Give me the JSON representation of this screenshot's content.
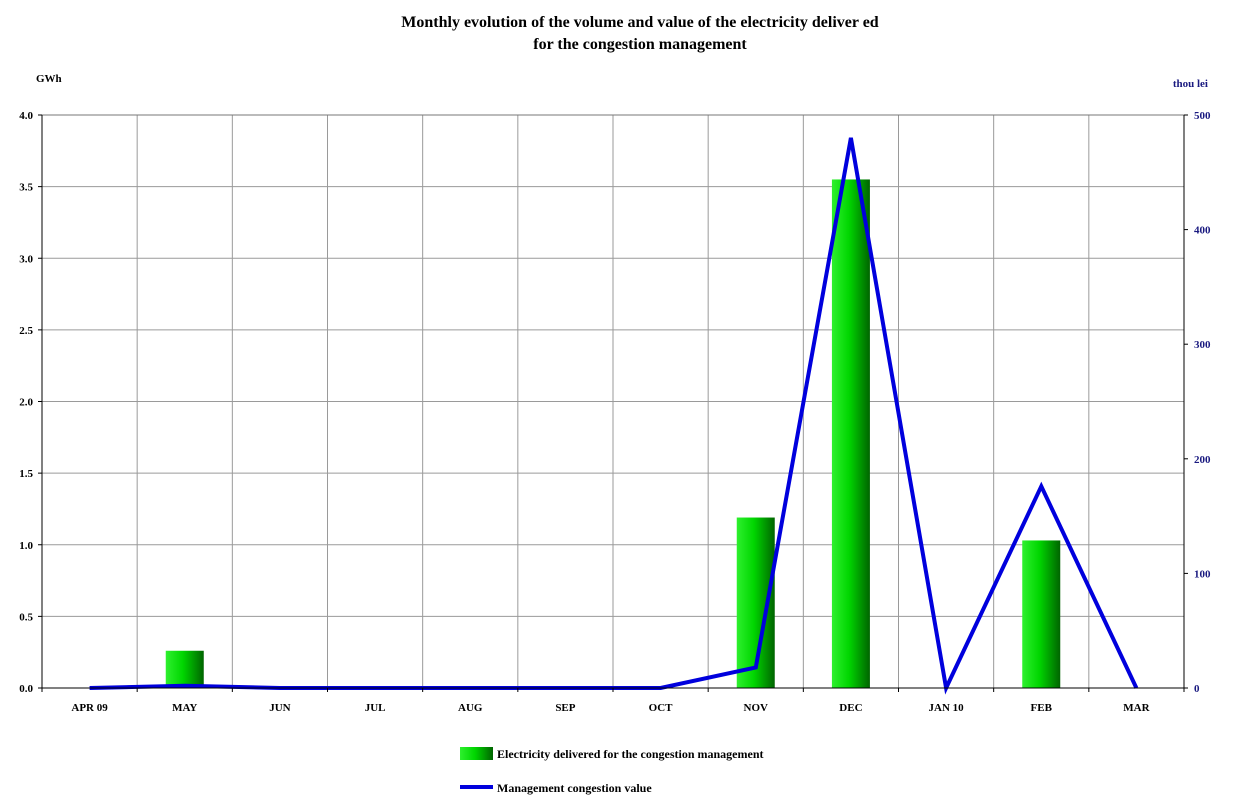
{
  "chart_data": {
    "type": "bar",
    "title": [
      "Monthly evolution of the volume and value of the electricity deliver ed",
      "for the congestion management"
    ],
    "categories": [
      "APR 09",
      "MAY",
      "JUN",
      "JUL",
      "AUG",
      "SEP",
      "OCT",
      "NOV",
      "DEC",
      "JAN 10",
      "FEB",
      "MAR"
    ],
    "ylabel_left": "GWh",
    "ylabel_right": "thou lei",
    "ylim_left": [
      0,
      4.0
    ],
    "ylim_right": [
      0,
      500
    ],
    "yticks_left": [
      "0.0",
      "0.5",
      "1.0",
      "1.5",
      "2.0",
      "2.5",
      "3.0",
      "3.5",
      "4.0"
    ],
    "yticks_right": [
      "0",
      "100",
      "200",
      "300",
      "400",
      "500"
    ],
    "grid": true,
    "legend_position": "bottom",
    "series": [
      {
        "name": "Electricity delivered for the congestion management",
        "kind": "bar",
        "axis": "left",
        "color": "#00cc00",
        "values": [
          0,
          0.26,
          0,
          0,
          0,
          0,
          0,
          1.19,
          3.55,
          0,
          1.03,
          0
        ]
      },
      {
        "name": "Management congestion value",
        "kind": "line",
        "axis": "right",
        "color": "#0000dd",
        "values": [
          0,
          2,
          0,
          0,
          0,
          0,
          0,
          18,
          480,
          0,
          176,
          0
        ]
      }
    ]
  }
}
